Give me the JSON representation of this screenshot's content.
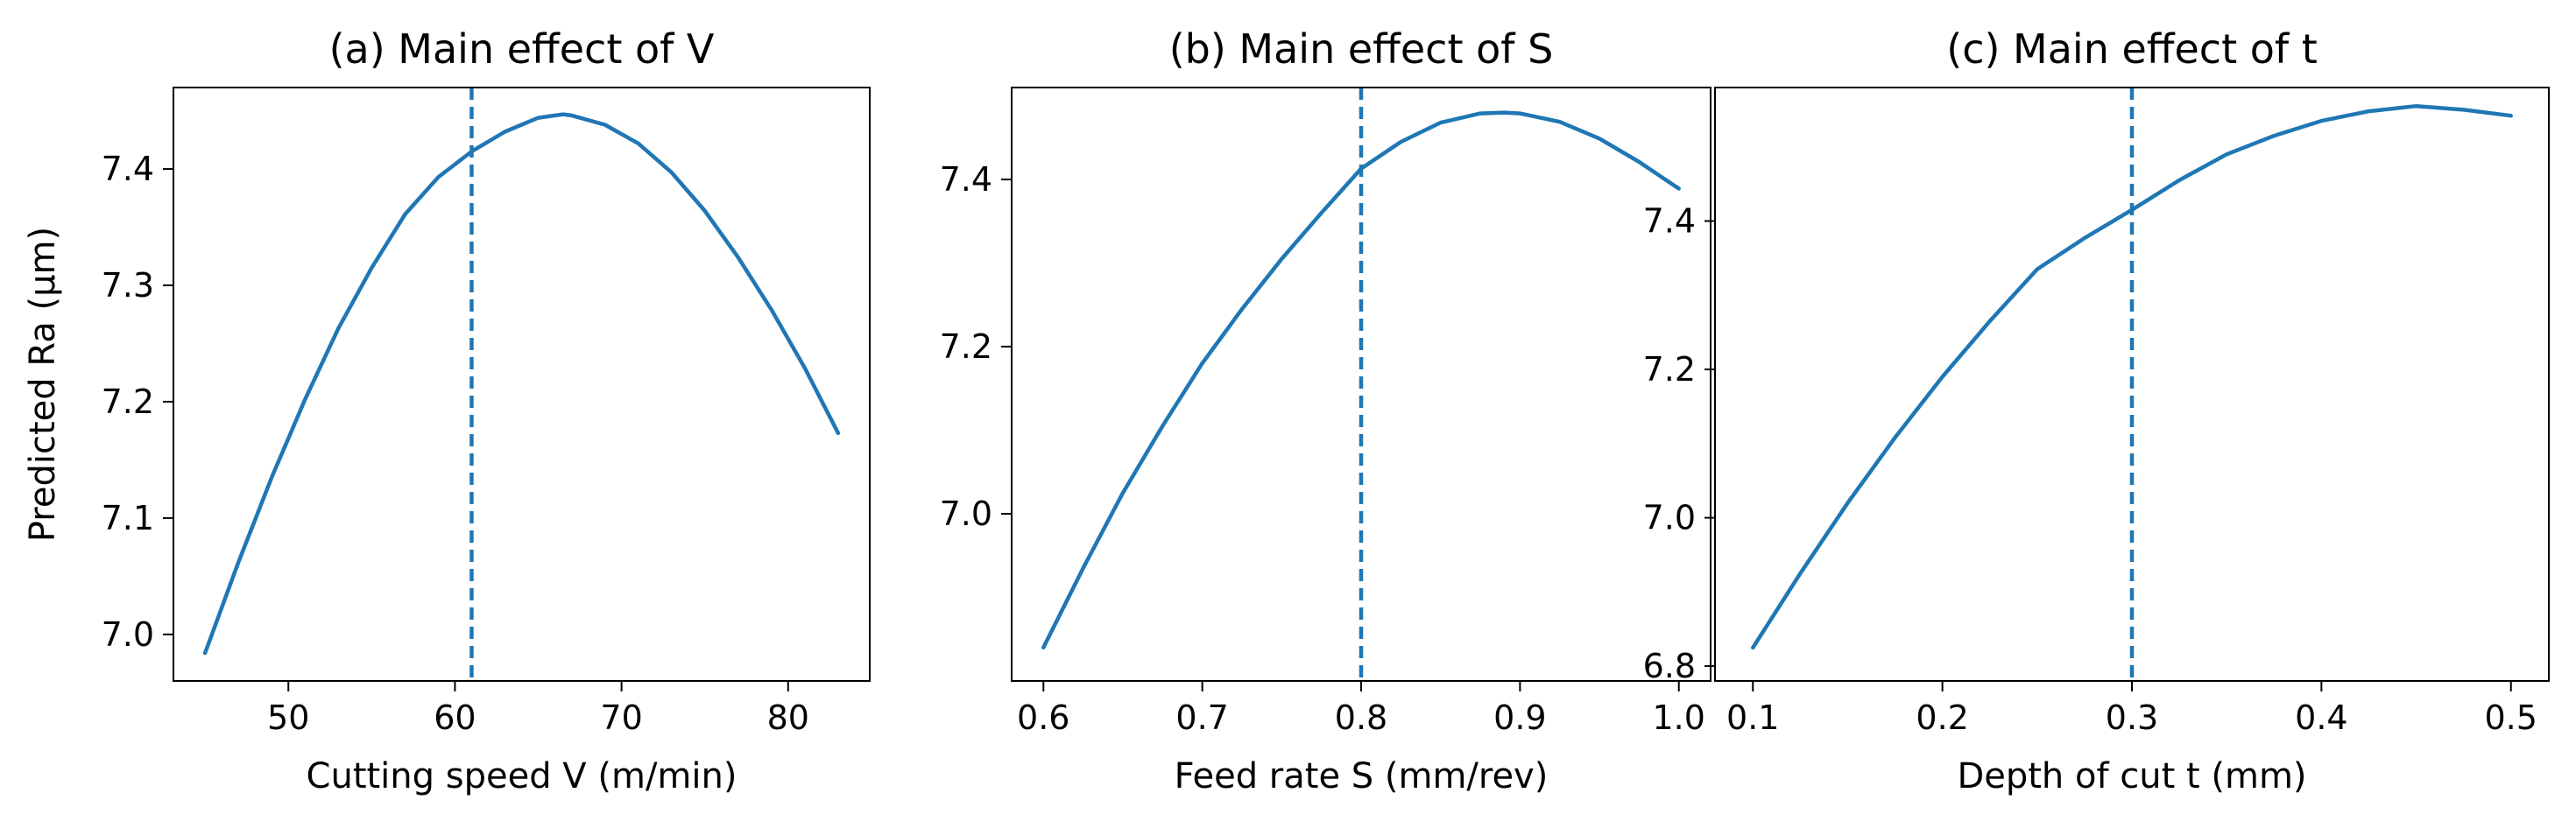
{
  "figure": {
    "curve_color": "#1f77b4",
    "axes_color": "#000000",
    "background": "#ffffff"
  },
  "chart_data": [
    {
      "type": "line",
      "title": "(a) Main effect of V",
      "xlabel": "Cutting speed V (m/min)",
      "ylabel": "Predicted Ra (µm)",
      "xlim": [
        43.1,
        84.9
      ],
      "ylim": [
        6.96,
        7.47
      ],
      "xticks": [
        50,
        60,
        70,
        80
      ],
      "xtick_labels": [
        "50",
        "60",
        "70",
        "80"
      ],
      "yticks": [
        7.0,
        7.1,
        7.2,
        7.3,
        7.4
      ],
      "ytick_labels": [
        "7.0",
        "7.1",
        "7.2",
        "7.3",
        "7.4"
      ],
      "series": [
        {
          "name": "Predicted Ra",
          "x": [
            45,
            47,
            49,
            51,
            53,
            55,
            57,
            59,
            61,
            63,
            65,
            66.5,
            67,
            69,
            71,
            73,
            75,
            77,
            79,
            81,
            83
          ],
          "y": [
            6.984,
            7.062,
            7.135,
            7.202,
            7.263,
            7.315,
            7.361,
            7.393,
            7.415,
            7.432,
            7.444,
            7.447,
            7.446,
            7.438,
            7.422,
            7.397,
            7.364,
            7.324,
            7.279,
            7.229,
            7.173
          ]
        }
      ],
      "reference_line": {
        "orientation": "vertical",
        "style": "dashed",
        "x": 61
      }
    },
    {
      "type": "line",
      "title": "(b) Main effect of S",
      "xlabel": "Feed rate S (mm/rev)",
      "ylabel": "",
      "xlim": [
        0.58,
        1.02
      ],
      "ylim": [
        6.8,
        7.51
      ],
      "xticks": [
        0.6,
        0.7,
        0.8,
        0.9,
        1.0
      ],
      "xtick_labels": [
        "0.6",
        "0.7",
        "0.8",
        "0.9",
        "1.0"
      ],
      "yticks": [
        7.0,
        7.2,
        7.4
      ],
      "ytick_labels": [
        "7.0",
        "7.2",
        "7.4"
      ],
      "series": [
        {
          "name": "Predicted Ra",
          "x": [
            0.6,
            0.625,
            0.65,
            0.675,
            0.7,
            0.725,
            0.75,
            0.775,
            0.8,
            0.825,
            0.85,
            0.875,
            0.89,
            0.9,
            0.925,
            0.95,
            0.975,
            1.0
          ],
          "y": [
            6.84,
            6.935,
            7.025,
            7.105,
            7.18,
            7.245,
            7.305,
            7.36,
            7.413,
            7.445,
            7.468,
            7.479,
            7.48,
            7.479,
            7.469,
            7.449,
            7.421,
            7.389
          ]
        }
      ],
      "reference_line": {
        "orientation": "vertical",
        "style": "dashed",
        "x": 0.8
      }
    },
    {
      "type": "line",
      "title": "(c) Main effect of t",
      "xlabel": "Depth of cut t (mm)",
      "ylabel": "",
      "xlim": [
        0.08,
        0.52
      ],
      "ylim": [
        6.78,
        7.58
      ],
      "xticks": [
        0.1,
        0.2,
        0.3,
        0.4,
        0.5
      ],
      "xtick_labels": [
        "0.1",
        "0.2",
        "0.3",
        "0.4",
        "0.5"
      ],
      "yticks": [
        6.8,
        7.0,
        7.2,
        7.4
      ],
      "ytick_labels": [
        "6.8",
        "7.0",
        "7.2",
        "7.4"
      ],
      "series": [
        {
          "name": "Predicted Ra",
          "x": [
            0.1,
            0.125,
            0.15,
            0.175,
            0.2,
            0.225,
            0.25,
            0.275,
            0.3,
            0.325,
            0.35,
            0.375,
            0.4,
            0.425,
            0.45,
            0.475,
            0.5
          ],
          "y": [
            6.825,
            6.925,
            7.02,
            7.108,
            7.19,
            7.265,
            7.335,
            7.377,
            7.415,
            7.455,
            7.49,
            7.515,
            7.535,
            7.548,
            7.555,
            7.55,
            7.542
          ]
        }
      ],
      "reference_line": {
        "orientation": "vertical",
        "style": "dashed",
        "x": 0.3
      }
    }
  ]
}
